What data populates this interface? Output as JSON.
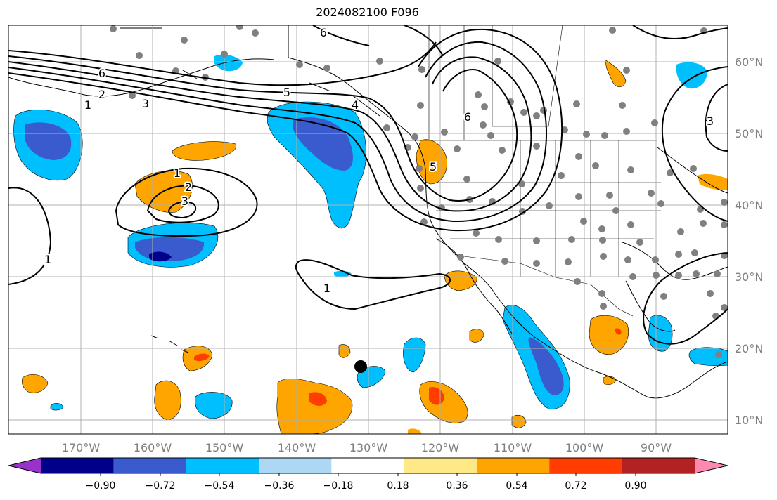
{
  "title": "2024082100 F096",
  "lon_ticks": [
    "170°W",
    "160°W",
    "150°W",
    "140°W",
    "130°W",
    "120°W",
    "110°W",
    "100°W",
    "90°W"
  ],
  "lat_ticks": [
    "10°N",
    "20°N",
    "30°N",
    "40°N",
    "50°N",
    "60°N"
  ],
  "colorbar": {
    "tick_labels": [
      "−0.90",
      "−0.72",
      "−0.54",
      "−0.36",
      "−0.18",
      "0.18",
      "0.36",
      "0.54",
      "0.72",
      "0.90"
    ],
    "colors": [
      "#9932cc",
      "#00008b",
      "#3a5bcd",
      "#00bfff",
      "#add8f5",
      "#ffffff",
      "#ffe987",
      "#ffa500",
      "#ff3d00",
      "#b22222",
      "#ff88b0"
    ]
  },
  "contour_labels": [
    "6",
    "6",
    "2",
    "1",
    "3",
    "5",
    "4",
    "6",
    "5",
    "3",
    "1",
    "2",
    "3",
    "1",
    "1"
  ],
  "colors": {
    "positive_main": "#ffa500",
    "negative_main": "#00bfff",
    "negative_strong": "#3a5bcd",
    "contour": "#000000",
    "station_dot": "#808080",
    "grid": "#b0b0b0"
  }
}
